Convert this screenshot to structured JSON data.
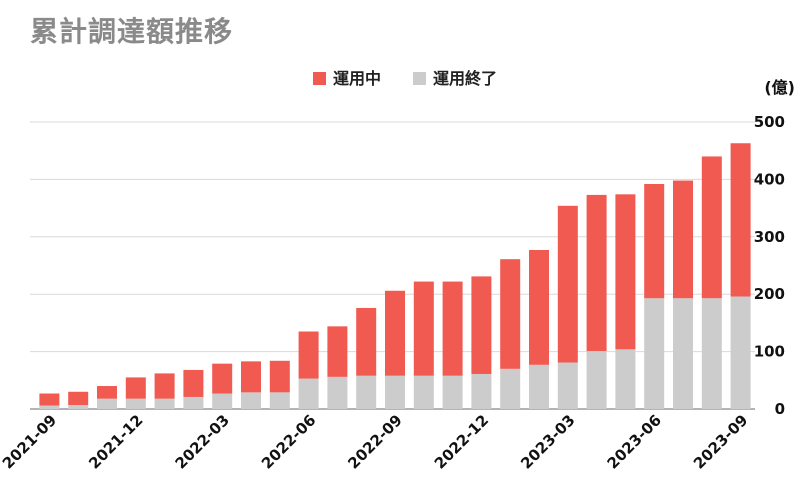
{
  "chart_data": {
    "type": "bar",
    "stacked": true,
    "title": "累計調達額推移",
    "unit_label": "(億)",
    "ylim": [
      0,
      500
    ],
    "yticks": [
      0,
      100,
      200,
      300,
      400,
      500
    ],
    "grid": true,
    "legend_position": "top-center",
    "categories": [
      "2021-09",
      "2021-10",
      "2021-11",
      "2021-12",
      "2022-01",
      "2022-02",
      "2022-03",
      "2022-04",
      "2022-05",
      "2022-06",
      "2022-07",
      "2022-08",
      "2022-09",
      "2022-10",
      "2022-11",
      "2022-12",
      "2023-01",
      "2023-02",
      "2023-03",
      "2023-04",
      "2023-05",
      "2023-06",
      "2023-07",
      "2023-08",
      "2023-09"
    ],
    "xtick_labels": [
      "2021-09",
      "",
      "",
      "2021-12",
      "",
      "",
      "2022-03",
      "",
      "",
      "2022-06",
      "",
      "",
      "2022-09",
      "",
      "",
      "2022-12",
      "",
      "",
      "2023-03",
      "",
      "",
      "2023-06",
      "",
      "",
      "2023-09"
    ],
    "series": [
      {
        "name": "運用終了",
        "color": "#cccccc",
        "values": [
          6,
          7,
          18,
          18,
          18,
          21,
          27,
          29,
          29,
          53,
          56,
          58,
          58,
          58,
          58,
          61,
          70,
          77,
          81,
          101,
          104,
          193,
          193,
          193,
          196
        ]
      },
      {
        "name": "運用中",
        "color": "#f05a50",
        "values": [
          21,
          23,
          22,
          37,
          44,
          47,
          52,
          54,
          55,
          82,
          88,
          118,
          148,
          164,
          164,
          170,
          191,
          200,
          273,
          272,
          270,
          199,
          205,
          247,
          267
        ]
      }
    ]
  }
}
